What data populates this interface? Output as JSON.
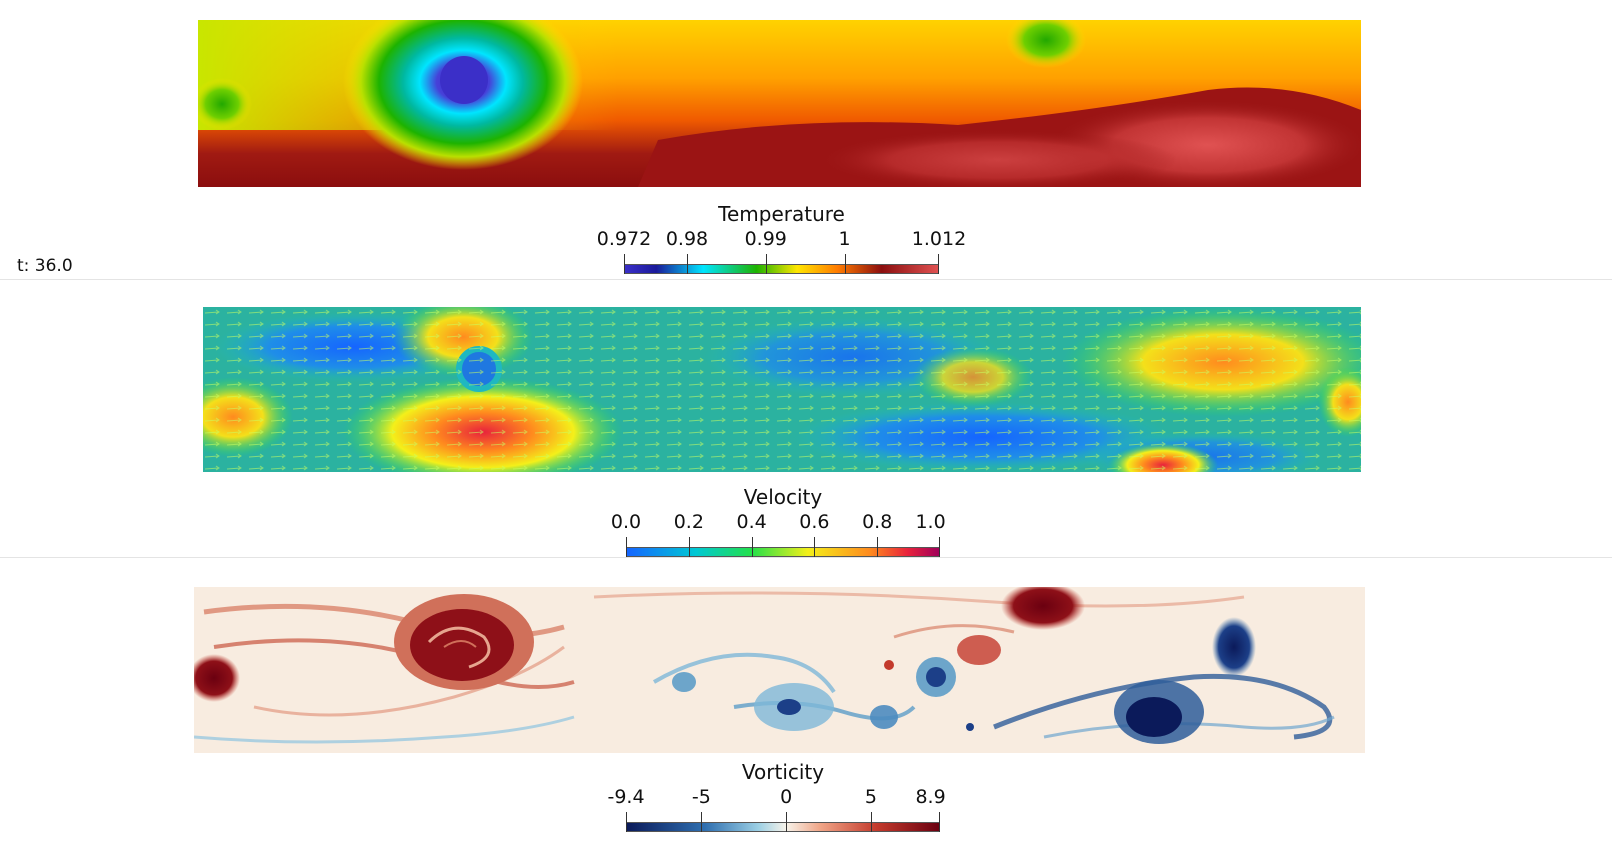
{
  "time_label": "t: 36.0",
  "colorbars": [
    {
      "title": "Temperature",
      "ticks": [
        "0.972",
        "0.98",
        "0.99",
        "1",
        "1.012"
      ],
      "tick_values": [
        0.972,
        0.98,
        0.99,
        1.0,
        1.012
      ],
      "range": [
        0.972,
        1.012
      ],
      "colormap": [
        "#3b2fc8",
        "#00e5ff",
        "#1db300",
        "#ffe600",
        "#ff7a00",
        "#8b0e0e",
        "#e05252"
      ]
    },
    {
      "title": "Velocity",
      "ticks": [
        "0.0",
        "0.2",
        "0.4",
        "0.6",
        "0.8",
        "1.0"
      ],
      "tick_values": [
        0.0,
        0.2,
        0.4,
        0.6,
        0.8,
        1.0
      ],
      "range": [
        0.0,
        1.0
      ],
      "colormap": [
        "#1565ff",
        "#00c8d4",
        "#23e04a",
        "#f4f01a",
        "#ff8a1e",
        "#e8223c",
        "#a0005a"
      ]
    },
    {
      "title": "Vorticity",
      "ticks": [
        "-9.4",
        "-5",
        "0",
        "5",
        "8.9"
      ],
      "tick_values": [
        -9.4,
        -5,
        0,
        5,
        8.9
      ],
      "range": [
        -9.4,
        8.9
      ],
      "colormap": [
        "#0b1a5a",
        "#2f6fb0",
        "#9bcfe4",
        "#f7f3ea",
        "#f0a587",
        "#c33a2c",
        "#6b0010"
      ]
    }
  ]
}
